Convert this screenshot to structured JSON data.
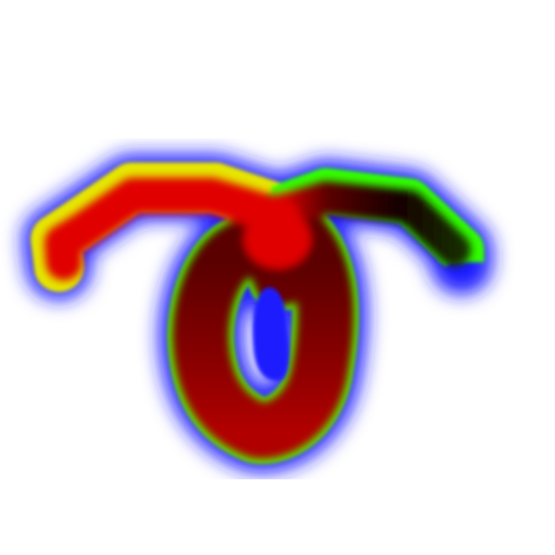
{
  "artwork": {
    "subject": "glyph-stroke",
    "palette": {
      "background": "#ffffff",
      "halo": "#1a1aff",
      "edge": "#33ff00",
      "edge_warm": "#e6e600",
      "core_red": "#e00000",
      "core_dark": "#5a0000",
      "core_black": "#150000"
    }
  }
}
